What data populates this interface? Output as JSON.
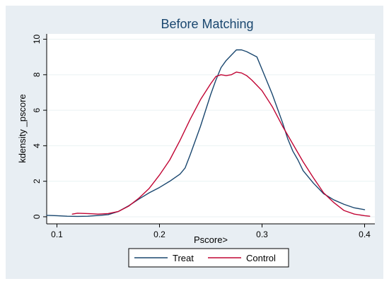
{
  "chart_data": {
    "type": "line",
    "title": "Before Matching",
    "xlabel": "Pscore>",
    "ylabel": "kdensity _pscore",
    "xlim": [
      0.09,
      0.41
    ],
    "ylim": [
      -0.4,
      10.3
    ],
    "xticks": [
      0.1,
      0.2,
      0.3,
      0.4
    ],
    "xtick_labels": [
      "0.1",
      "0.2",
      "0.3",
      "0.4"
    ],
    "yticks": [
      0,
      2,
      4,
      6,
      8,
      10
    ],
    "ytick_labels": [
      "0",
      "2",
      "4",
      "6",
      "8",
      "10"
    ],
    "grid": "horizontal",
    "legend_position": "bottom",
    "colors": {
      "background": "#e8eef3",
      "plot_background": "#ffffff",
      "grid": "#eaf2f3",
      "title": "#1a476f"
    },
    "series": [
      {
        "name": "Treat",
        "color": "#1a476f",
        "x": [
          0.09,
          0.1,
          0.11,
          0.12,
          0.13,
          0.14,
          0.15,
          0.16,
          0.17,
          0.18,
          0.19,
          0.2,
          0.21,
          0.22,
          0.225,
          0.23,
          0.235,
          0.24,
          0.245,
          0.25,
          0.255,
          0.26,
          0.265,
          0.27,
          0.275,
          0.28,
          0.285,
          0.29,
          0.295,
          0.3,
          0.305,
          0.31,
          0.315,
          0.32,
          0.325,
          0.33,
          0.335,
          0.34,
          0.35,
          0.36,
          0.37,
          0.38,
          0.39,
          0.4
        ],
        "values": [
          0.08,
          0.06,
          0.03,
          0.02,
          0.03,
          0.07,
          0.12,
          0.3,
          0.62,
          1.0,
          1.35,
          1.65,
          2.0,
          2.4,
          2.75,
          3.5,
          4.3,
          5.1,
          6.0,
          6.9,
          7.7,
          8.4,
          8.8,
          9.1,
          9.4,
          9.4,
          9.3,
          9.15,
          9.0,
          8.3,
          7.6,
          6.9,
          6.1,
          5.3,
          4.4,
          3.7,
          3.2,
          2.6,
          1.9,
          1.3,
          0.95,
          0.7,
          0.5,
          0.4
        ]
      },
      {
        "name": "Control",
        "color": "#c10534",
        "x": [
          0.115,
          0.12,
          0.13,
          0.14,
          0.15,
          0.16,
          0.17,
          0.18,
          0.19,
          0.2,
          0.21,
          0.22,
          0.23,
          0.24,
          0.25,
          0.255,
          0.26,
          0.265,
          0.27,
          0.275,
          0.28,
          0.285,
          0.29,
          0.295,
          0.3,
          0.31,
          0.32,
          0.33,
          0.34,
          0.35,
          0.36,
          0.37,
          0.38,
          0.39,
          0.4,
          0.405
        ],
        "values": [
          0.15,
          0.2,
          0.18,
          0.15,
          0.18,
          0.3,
          0.6,
          1.05,
          1.6,
          2.35,
          3.2,
          4.3,
          5.5,
          6.6,
          7.5,
          7.9,
          8.0,
          7.95,
          8.0,
          8.15,
          8.1,
          7.95,
          7.7,
          7.4,
          7.1,
          6.2,
          5.1,
          4.1,
          3.1,
          2.2,
          1.35,
          0.8,
          0.35,
          0.15,
          0.06,
          0.03
        ]
      }
    ]
  }
}
